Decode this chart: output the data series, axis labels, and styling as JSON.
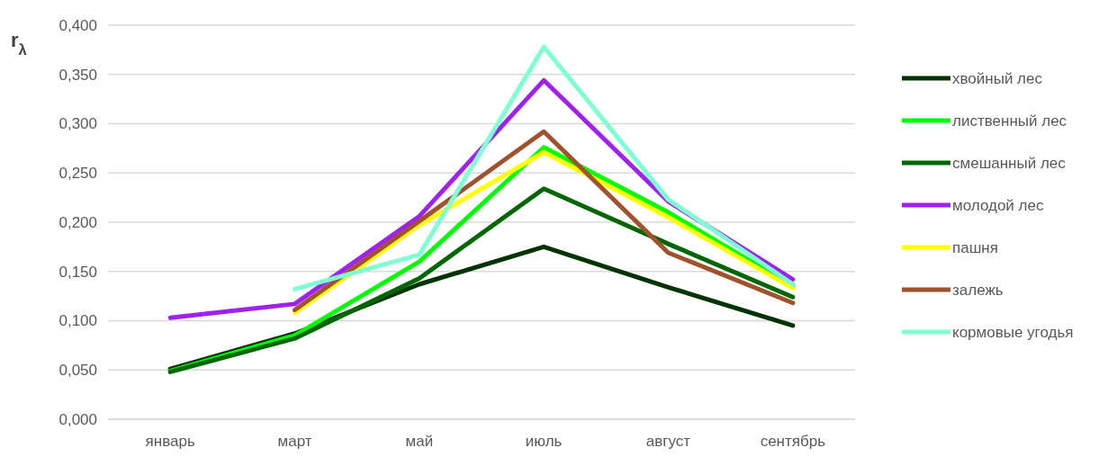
{
  "chart_data": {
    "type": "line",
    "ylabel": "r$_{λ}$",
    "categories": [
      "январь",
      "март",
      "май",
      "июль",
      "август",
      "сентябрь"
    ],
    "series": [
      {
        "name": "хвойный лес",
        "color": "#003300",
        "values": [
          0.051,
          0.087,
          0.137,
          0.175,
          0.134,
          0.095
        ]
      },
      {
        "name": "лиственный лес",
        "color": "#00ff00",
        "values": [
          0.049,
          0.085,
          0.16,
          0.276,
          0.21,
          0.135
        ]
      },
      {
        "name": "смешанный лес",
        "color": "#006600",
        "values": [
          0.048,
          0.082,
          0.143,
          0.234,
          0.178,
          0.124
        ]
      },
      {
        "name": "молодой лес",
        "color": "#a020f0",
        "values": [
          0.103,
          0.117,
          0.206,
          0.344,
          0.221,
          0.142
        ]
      },
      {
        "name": "пашня",
        "color": "#ffff00",
        "values": [
          null,
          0.108,
          0.197,
          0.271,
          0.205,
          0.133
        ]
      },
      {
        "name": "залежь",
        "color": "#a0522d",
        "values": [
          null,
          0.111,
          0.201,
          0.292,
          0.169,
          0.118
        ]
      },
      {
        "name": "кормовые угодья",
        "color": "#7fffd4",
        "values": [
          null,
          0.132,
          0.167,
          0.378,
          0.223,
          0.137
        ]
      }
    ],
    "ylim": [
      0,
      0.4
    ],
    "yticks": [
      {
        "value": 0,
        "label": "0,000"
      },
      {
        "value": 0.05,
        "label": "0,050"
      },
      {
        "value": 0.1,
        "label": "0,100"
      },
      {
        "value": 0.15,
        "label": "0,150"
      },
      {
        "value": 0.2,
        "label": "0,200"
      },
      {
        "value": 0.25,
        "label": "0,250"
      },
      {
        "value": 0.3,
        "label": "0,300"
      },
      {
        "value": 0.35,
        "label": "0,350"
      },
      {
        "value": 0.4,
        "label": "0,400"
      }
    ],
    "grid": "y",
    "legend": "right",
    "marker": "none",
    "line_style": "solid"
  }
}
